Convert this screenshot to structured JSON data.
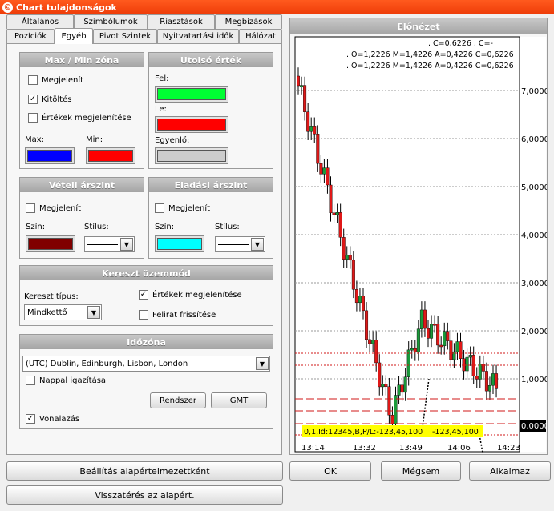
{
  "window": {
    "title": "Chart tulajdonságok"
  },
  "tabs_row1": [
    "Általános",
    "Szimbólumok",
    "Riasztások",
    "Megbízások"
  ],
  "tabs_row2": [
    "Pozíciók",
    "Egyéb",
    "Pivot Szintek",
    "Nyitvatartási idők",
    "Hálózat"
  ],
  "active_tab": "Egyéb",
  "maxmin": {
    "title": "Max / Min zóna",
    "show": "Megjelenít",
    "fill": "Kitöltés",
    "values": "Értékek megjelenítése",
    "max_label": "Max:",
    "min_label": "Min:",
    "max_color": "#0000ff",
    "min_color": "#ff0000",
    "show_checked": false,
    "fill_checked": true,
    "values_checked": false
  },
  "last_value": {
    "title": "Utolsó érték",
    "up_label": "Fel:",
    "down_label": "Le:",
    "equal_label": "Egyenlő:",
    "up_color": "#00ff33",
    "down_color": "#ff0000",
    "equal_color": "#cccccc"
  },
  "buy_level": {
    "title": "Vételi árszint",
    "show": "Megjelenít",
    "color_label": "Szín:",
    "style_label": "Stílus:",
    "color": "#800000"
  },
  "sell_level": {
    "title": "Eladási árszint",
    "show": "Megjelenít",
    "color_label": "Szín:",
    "style_label": "Stílus:",
    "color": "#00ffff"
  },
  "cross": {
    "title": "Kereszt üzemmód",
    "type_label": "Kereszt típus:",
    "type_value": "Mindkettő",
    "values": "Értékek megjelenítése",
    "values_checked": true,
    "refresh": "Felirat frissítése",
    "refresh_checked": false
  },
  "timezone": {
    "title": "Időzóna",
    "value": "(UTC) Dublin, Edinburgh, Lisbon, London",
    "dst": "Nappal igazítása",
    "dst_checked": false,
    "system_btn": "Rendszer",
    "gmt_btn": "GMT",
    "lines": "Vonalazás",
    "lines_checked": true
  },
  "buttons": {
    "set_default": "Beállítás alapértelmezettként",
    "reset_default": "Visszatérés az alapért.",
    "ok": "OK",
    "cancel": "Mégsem",
    "apply": "Alkalmaz"
  },
  "preview": {
    "title": "Előnézet",
    "info_lines": [
      ". C=0,6226 . C=-",
      ". O=1,2226 M=1,4226 A=0,4226 C=0,6226",
      ". O=1,2226 M=1,4226 A=0,4226 C=0,6226"
    ],
    "y_labels": [
      "7,0000",
      "6,0000",
      "5,0000",
      "4,0000",
      "3,0000",
      "2,0000",
      "1,0000"
    ],
    "current_price": "0,0000",
    "x_labels": [
      "13:14",
      "13:32",
      "13:49",
      "14:06",
      "14:23"
    ],
    "order_label": "0,1,Id:12345,B,P/L:-123,45,100",
    "order_label2": "-123,45,100",
    "colors": {
      "bull": "#1a9a3a",
      "bear": "#e01818",
      "level": "#d01818"
    }
  },
  "chart_data": {
    "type": "candlestick",
    "y_ticks": [
      "7,0000",
      "6,0000",
      "5,0000",
      "4,0000",
      "3,0000",
      "2,0000",
      "1,0000"
    ],
    "x_ticks": [
      "13:14",
      "13:32",
      "13:49",
      "14:06",
      "14:23"
    ],
    "current": "0,0000"
  }
}
